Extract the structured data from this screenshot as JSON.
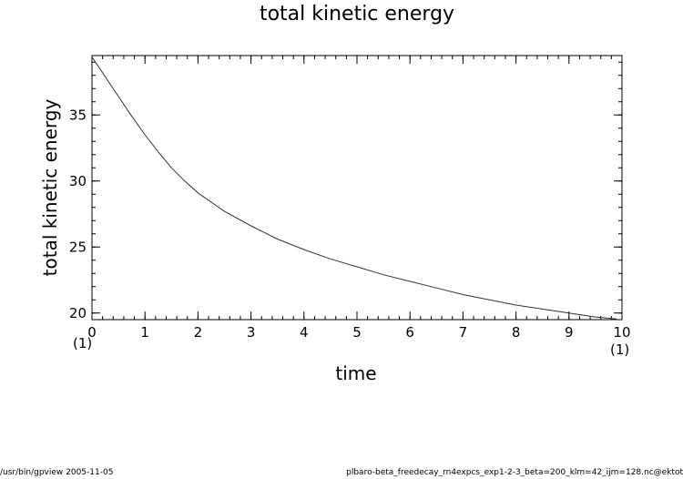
{
  "chart_data": {
    "type": "line",
    "title": "total kinetic energy",
    "xlabel": "time",
    "ylabel": "total kinetic energy",
    "x_unit": "(1)",
    "x_unit_right": "(1)",
    "xlim": [
      0,
      10
    ],
    "ylim": [
      19.5,
      39.5
    ],
    "xticks": [
      0,
      1,
      2,
      3,
      4,
      5,
      6,
      7,
      8,
      9,
      10
    ],
    "yticks": [
      20,
      25,
      30,
      35
    ],
    "grid": false,
    "series": [
      {
        "x": [
          0,
          0.25,
          0.5,
          0.75,
          1,
          1.25,
          1.5,
          1.75,
          2,
          2.5,
          3,
          3.5,
          4,
          4.5,
          5,
          5.5,
          6,
          6.5,
          7,
          7.5,
          8,
          8.5,
          9,
          9.5,
          9.9
        ],
        "y": [
          39.4,
          37.9,
          36.4,
          34.9,
          33.5,
          32.2,
          31.0,
          30.0,
          29.1,
          27.7,
          26.6,
          25.6,
          24.8,
          24.1,
          23.5,
          22.9,
          22.4,
          21.9,
          21.4,
          21.0,
          20.6,
          20.3,
          20.0,
          19.7,
          19.55
        ]
      }
    ]
  },
  "footer": {
    "left": "/usr/bin/gpview   2005-11-05",
    "right": "plbaro-beta_freedecay_rn4expcs_exp1-2-3_beta=200_klm=42_ijm=128.nc@ektot"
  }
}
